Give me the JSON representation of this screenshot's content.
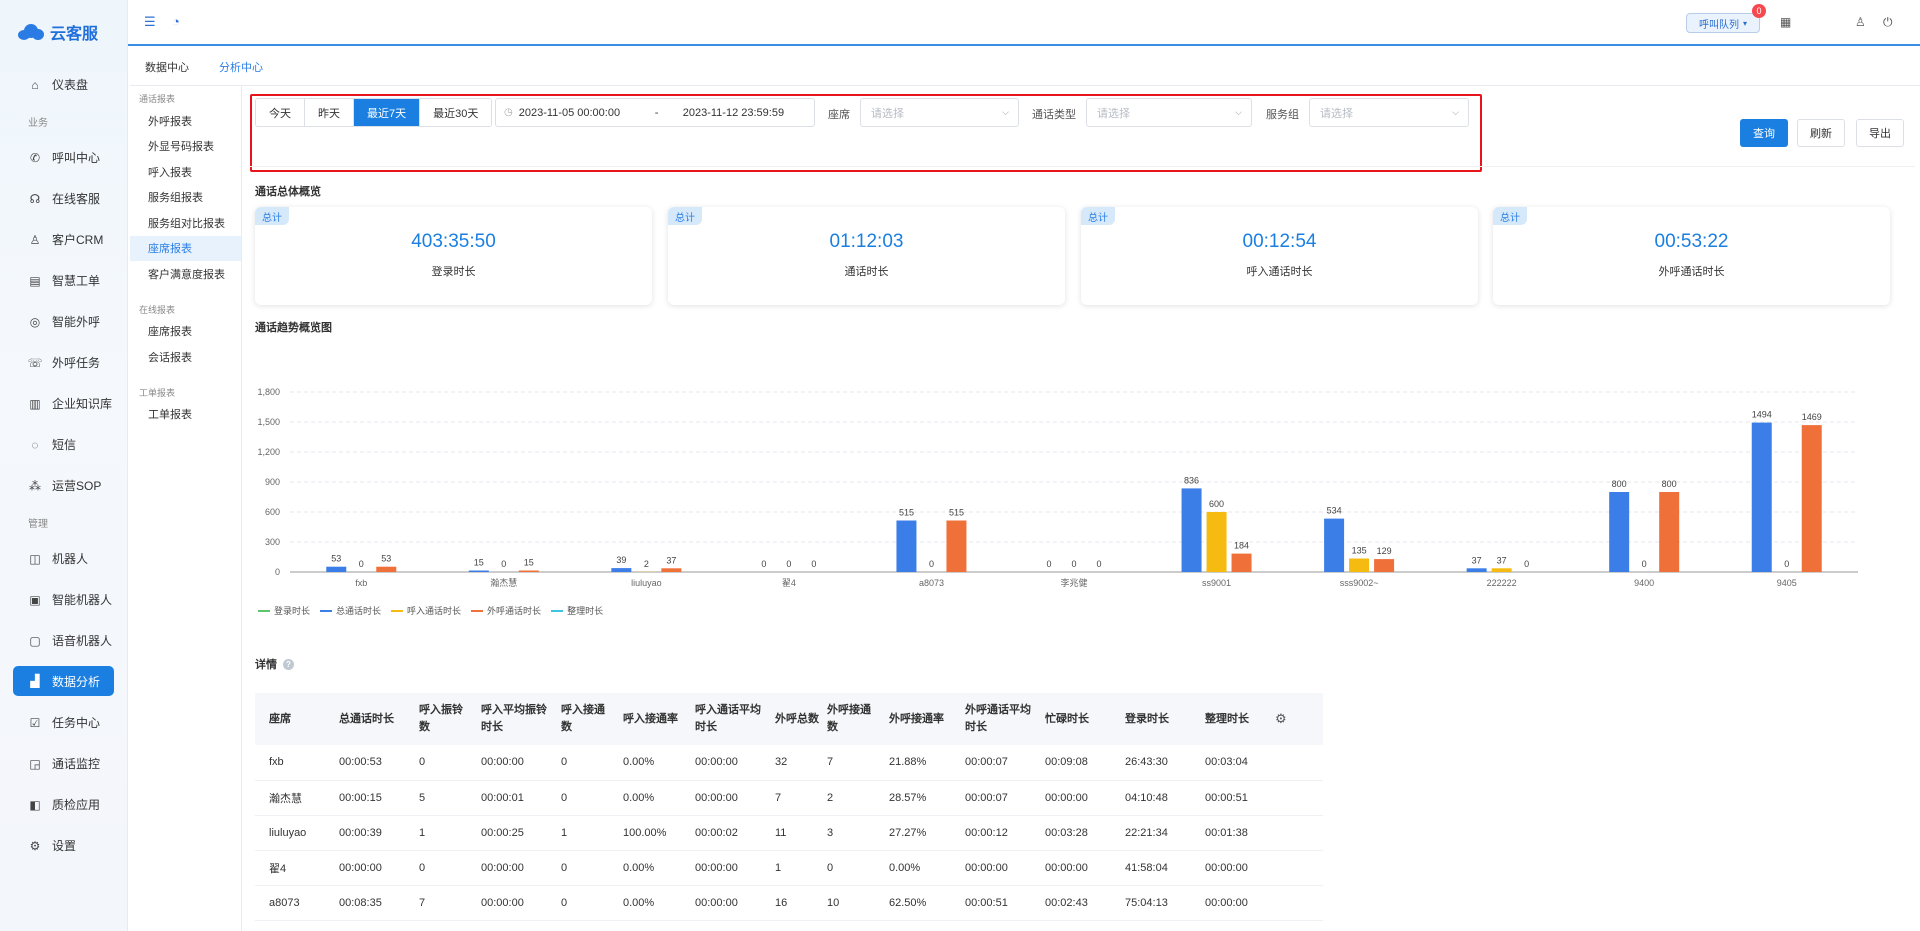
{
  "app": {
    "name": "云客服"
  },
  "sidebar": {
    "items": [
      {
        "type": "item",
        "label": "仪表盘",
        "icon": "home-icon",
        "glyph": "⌂"
      },
      {
        "type": "group",
        "label": "业务"
      },
      {
        "type": "item",
        "label": "呼叫中心",
        "icon": "phone-icon",
        "glyph": "✆"
      },
      {
        "type": "item",
        "label": "在线客服",
        "icon": "headset-icon",
        "glyph": "☊"
      },
      {
        "type": "item",
        "label": "客户CRM",
        "icon": "user-icon",
        "glyph": "♙"
      },
      {
        "type": "item",
        "label": "智慧工单",
        "icon": "document-icon",
        "glyph": "▤"
      },
      {
        "type": "item",
        "label": "智能外呼",
        "icon": "chat-phone-icon",
        "glyph": "◎"
      },
      {
        "type": "item",
        "label": "外呼任务",
        "icon": "outbound-icon",
        "glyph": "☏"
      },
      {
        "type": "item",
        "label": "企业知识库",
        "icon": "book-icon",
        "glyph": "▥"
      },
      {
        "type": "item",
        "label": "短信",
        "icon": "message-icon",
        "glyph": "◌"
      },
      {
        "type": "item",
        "label": "运营SOP",
        "icon": "flow-icon",
        "glyph": "⁂"
      },
      {
        "type": "group",
        "label": "管理"
      },
      {
        "type": "item",
        "label": "机器人",
        "icon": "robot-icon",
        "glyph": "◫"
      },
      {
        "type": "item",
        "label": "智能机器人",
        "icon": "smart-robot-icon",
        "glyph": "▣"
      },
      {
        "type": "item",
        "label": "语音机器人",
        "icon": "voice-robot-icon",
        "glyph": "▢"
      },
      {
        "type": "item",
        "label": "数据分析",
        "icon": "chart-icon",
        "glyph": "▟",
        "active": true
      },
      {
        "type": "item",
        "label": "任务中心",
        "icon": "task-icon",
        "glyph": "☑"
      },
      {
        "type": "item",
        "label": "通话监控",
        "icon": "monitor-icon",
        "glyph": "◲"
      },
      {
        "type": "item",
        "label": "质检应用",
        "icon": "inspect-icon",
        "glyph": "◧"
      },
      {
        "type": "item",
        "label": "设置",
        "icon": "settings-icon",
        "glyph": "⚙"
      }
    ]
  },
  "topbar": {
    "queue_label": "呼叫队列",
    "badge_count": "0"
  },
  "subnav": {
    "tabs": [
      "数据中心",
      "分析中心"
    ],
    "active": 1
  },
  "report_nav": [
    {
      "group": "通话报表",
      "items": [
        "外呼报表",
        "外显号码报表",
        "呼入报表",
        "服务组报表",
        "服务组对比报表",
        "座席报表",
        "客户满意度报表"
      ],
      "active": 5
    },
    {
      "group": "在线报表",
      "items": [
        "座席报表",
        "会话报表"
      ]
    },
    {
      "group": "工单报表",
      "items": [
        "工单报表"
      ]
    }
  ],
  "filters": {
    "ranges": [
      "今天",
      "昨天",
      "最近7天",
      "最近30天"
    ],
    "active_range": 2,
    "date_start": "2023-11-05 00:00:00",
    "date_sep": "-",
    "date_end": "2023-11-12 23:59:59",
    "agent_label": "座席",
    "agent_placeholder": "请选择",
    "calltype_label": "通话类型",
    "calltype_placeholder": "请选择",
    "group_label": "服务组",
    "group_placeholder": "请选择"
  },
  "buttons": {
    "query": "查询",
    "refresh": "刷新",
    "export": "导出"
  },
  "overview_title": "通话总体概览",
  "cards": [
    {
      "tag": "总计",
      "value": "403:35:50",
      "label": "登录时长"
    },
    {
      "tag": "总计",
      "value": "01:12:03",
      "label": "通话时长"
    },
    {
      "tag": "总计",
      "value": "00:12:54",
      "label": "呼入通话时长"
    },
    {
      "tag": "总计",
      "value": "00:53:22",
      "label": "外呼通话时长"
    }
  ],
  "trend_title": "通话趋势概览图",
  "chart_data": {
    "type": "bar",
    "categories": [
      "fxb",
      "瀚杰慧",
      "liuluyao",
      "翟4",
      "a8073",
      "李兆健",
      "ss9001",
      "sss9002~",
      "222222",
      "9400",
      "9405"
    ],
    "ylim": [
      0,
      1800
    ],
    "yticks": [
      0,
      300,
      600,
      900,
      1200,
      1500,
      1800
    ],
    "grid": true,
    "legend_position": "bottom-left",
    "series": [
      {
        "name": "登录时长",
        "color": "#5fc46c",
        "values": null
      },
      {
        "name": "总通话时长",
        "color": "#3c7ee8",
        "values": [
          53,
          15,
          39,
          0,
          515,
          0,
          836,
          534,
          37,
          800,
          1494
        ]
      },
      {
        "name": "呼入通话时长",
        "color": "#f5bb10",
        "values": [
          0,
          0,
          2,
          0,
          0,
          0,
          600,
          135,
          37,
          0,
          0
        ]
      },
      {
        "name": "外呼通话时长",
        "color": "#f0703a",
        "values": [
          53,
          15,
          37,
          0,
          515,
          0,
          184,
          129,
          0,
          800,
          1469
        ]
      },
      {
        "name": "整理时长",
        "color": "#3ec3e0",
        "values": null
      }
    ]
  },
  "detail": {
    "title": "详情",
    "columns": [
      "座席",
      "总通话时长",
      "呼入振铃数",
      "呼入平均振铃时长",
      "呼入接通数",
      "呼入接通率",
      "呼入通话平均时长",
      "外呼总数",
      "外呼接通数",
      "外呼接通率",
      "外呼通话平均时长",
      "忙碌时长",
      "登录时长",
      "整理时长"
    ],
    "rows": [
      [
        "fxb",
        "00:00:53",
        "0",
        "00:00:00",
        "0",
        "0.00%",
        "00:00:00",
        "32",
        "7",
        "21.88%",
        "00:00:07",
        "00:09:08",
        "26:43:30",
        "00:03:04"
      ],
      [
        "瀚杰慧",
        "00:00:15",
        "5",
        "00:00:01",
        "0",
        "0.00%",
        "00:00:00",
        "7",
        "2",
        "28.57%",
        "00:00:07",
        "00:00:00",
        "04:10:48",
        "00:00:51"
      ],
      [
        "liuluyao",
        "00:00:39",
        "1",
        "00:00:25",
        "1",
        "100.00%",
        "00:00:02",
        "11",
        "3",
        "27.27%",
        "00:00:12",
        "00:03:28",
        "22:21:34",
        "00:01:38"
      ],
      [
        "翟4",
        "00:00:00",
        "0",
        "00:00:00",
        "0",
        "0.00%",
        "00:00:00",
        "1",
        "0",
        "0.00%",
        "00:00:00",
        "00:00:00",
        "41:58:04",
        "00:00:00"
      ],
      [
        "a8073",
        "00:08:35",
        "7",
        "00:00:00",
        "0",
        "0.00%",
        "00:00:00",
        "16",
        "10",
        "62.50%",
        "00:00:51",
        "00:02:43",
        "75:04:13",
        "00:00:00"
      ]
    ]
  }
}
